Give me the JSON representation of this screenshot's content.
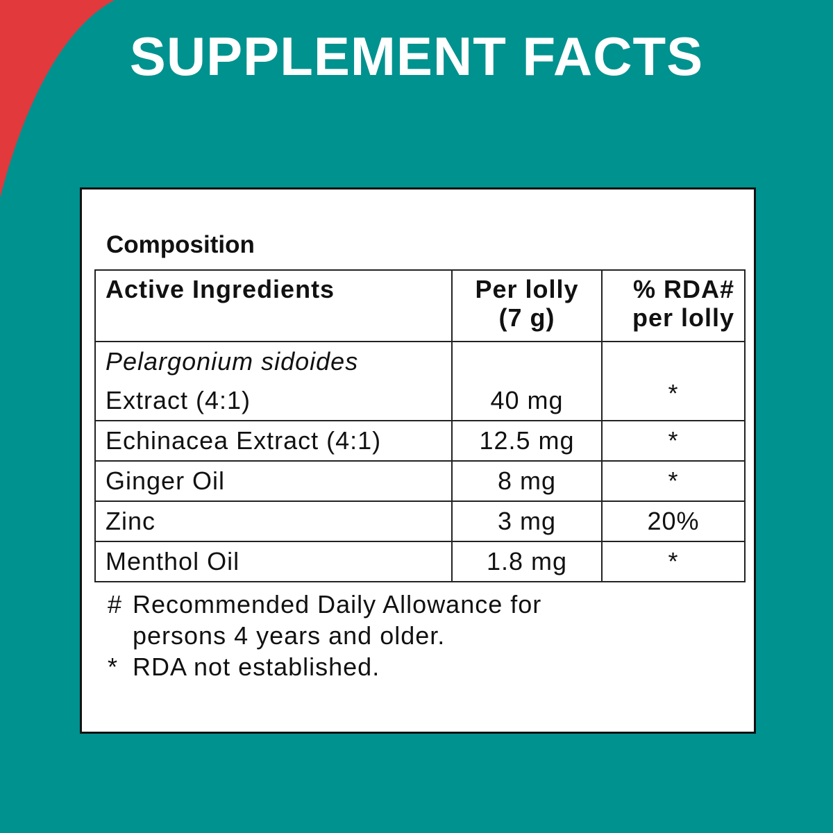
{
  "header": {
    "title": "SUPPLEMENT FACTS"
  },
  "panel": {
    "heading": "Composition",
    "table": {
      "columns": [
        [
          "Active Ingredients"
        ],
        [
          "Per lolly",
          "(7 g)"
        ],
        [
          "% RDA#",
          "per lolly"
        ]
      ],
      "rows": [
        {
          "ingredient_latin": "Pelargonium sidoides",
          "ingredient": "Extract (4:1)",
          "amount": "40 mg",
          "rda": "*"
        },
        {
          "ingredient": "Echinacea Extract (4:1)",
          "amount": "12.5 mg",
          "rda": "*"
        },
        {
          "ingredient": "Ginger Oil",
          "amount": "8 mg",
          "rda": "*"
        },
        {
          "ingredient": "Zinc",
          "amount": "3 mg",
          "rda": "20%"
        },
        {
          "ingredient": "Menthol Oil",
          "amount": "1.8 mg",
          "rda": "*"
        }
      ]
    },
    "footnotes": [
      {
        "symbol": "#",
        "text": "Recommended Daily Allowance for persons 4 years and older."
      },
      {
        "symbol": "*",
        "text": "RDA not established."
      }
    ]
  }
}
